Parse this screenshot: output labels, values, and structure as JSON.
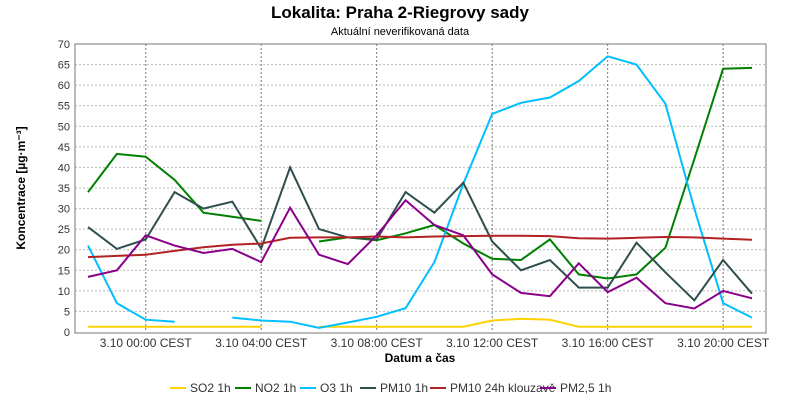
{
  "chart_data": {
    "type": "line",
    "title": "Lokalita: Praha 2-Riegrovy sady",
    "subtitle": "Aktuální neverifikovaná data",
    "xlabel": "Datum a čas",
    "ylabel": "Koncentrace [µg·m⁻³]",
    "ylim": [
      0,
      70
    ],
    "yticks": [
      0,
      5,
      10,
      15,
      20,
      25,
      30,
      35,
      40,
      45,
      50,
      55,
      60,
      65,
      70
    ],
    "x": [
      "2.10 22:00",
      "2.10 23:00",
      "3.10 00:00",
      "3.10 01:00",
      "3.10 02:00",
      "3.10 03:00",
      "3.10 04:00",
      "3.10 05:00",
      "3.10 06:00",
      "3.10 07:00",
      "3.10 08:00",
      "3.10 09:00",
      "3.10 10:00",
      "3.10 11:00",
      "3.10 12:00",
      "3.10 13:00",
      "3.10 14:00",
      "3.10 15:00",
      "3.10 16:00",
      "3.10 17:00",
      "3.10 18:00",
      "3.10 19:00",
      "3.10 20:00",
      "3.10 21:00"
    ],
    "xticks": [
      {
        "index": 2,
        "label": "3.10 00:00 CEST"
      },
      {
        "index": 6,
        "label": "3.10 04:00 CEST"
      },
      {
        "index": 10,
        "label": "3.10 08:00 CEST"
      },
      {
        "index": 14,
        "label": "3.10 12:00 CEST"
      },
      {
        "index": 18,
        "label": "3.10 16:00 CEST"
      },
      {
        "index": 22,
        "label": "3.10 20:00 CEST"
      }
    ],
    "grid": true,
    "legend": "bottom",
    "series": [
      {
        "name": "SO2 1h",
        "color": "#ffd200",
        "values": [
          1.3,
          1.3,
          1.3,
          1.3,
          1.3,
          1.3,
          1.3,
          null,
          1.3,
          1.3,
          1.3,
          1.3,
          1.3,
          1.3,
          2.8,
          3.2,
          3.0,
          1.3,
          1.3,
          1.3,
          1.3,
          1.3,
          1.3,
          1.3
        ]
      },
      {
        "name": "NO2 1h",
        "color": "#008000",
        "values": [
          34,
          43.3,
          42.6,
          37,
          29,
          28,
          27,
          null,
          22,
          23,
          22.3,
          24,
          26,
          21.5,
          17.8,
          17.5,
          22.5,
          14,
          13,
          14,
          20.5,
          42,
          64,
          64.2
        ]
      },
      {
        "name": "O3 1h",
        "color": "#00bfff",
        "values": [
          21,
          7,
          3,
          2.5,
          null,
          3.5,
          2.8,
          2.5,
          1,
          2.3,
          3.7,
          5.8,
          17,
          36,
          53,
          55.7,
          57,
          61,
          67,
          65,
          55.5,
          30,
          7,
          3.5
        ]
      },
      {
        "name": "PM10 1h",
        "color": "#2f4f4f",
        "values": [
          25.5,
          20.2,
          22.5,
          34,
          30,
          31.7,
          20.3,
          40,
          25,
          23,
          22.5,
          34,
          29,
          36.3,
          22,
          15,
          17.5,
          10.8,
          10.8,
          21.7,
          14.5,
          7.7,
          17.5,
          9.3
        ]
      },
      {
        "name": "PM10 24h klouzavě",
        "color": "#b22222",
        "values": [
          18.2,
          18.5,
          18.8,
          19.7,
          20.6,
          21.2,
          21.5,
          22.9,
          23.0,
          23.0,
          23.2,
          23.0,
          23.2,
          23.3,
          23.4,
          23.4,
          23.3,
          22.8,
          22.7,
          22.9,
          23.1,
          23.0,
          22.7,
          22.4
        ]
      },
      {
        "name": "PM2,5 1h",
        "color": "#8b008b",
        "values": [
          13.4,
          15,
          23.5,
          21,
          19.2,
          20.2,
          17,
          30.2,
          18.8,
          16.5,
          23.5,
          32,
          26,
          23.5,
          14,
          9.5,
          8.7,
          16.7,
          9.7,
          13.2,
          7,
          5.7,
          10,
          8.2
        ]
      }
    ]
  }
}
